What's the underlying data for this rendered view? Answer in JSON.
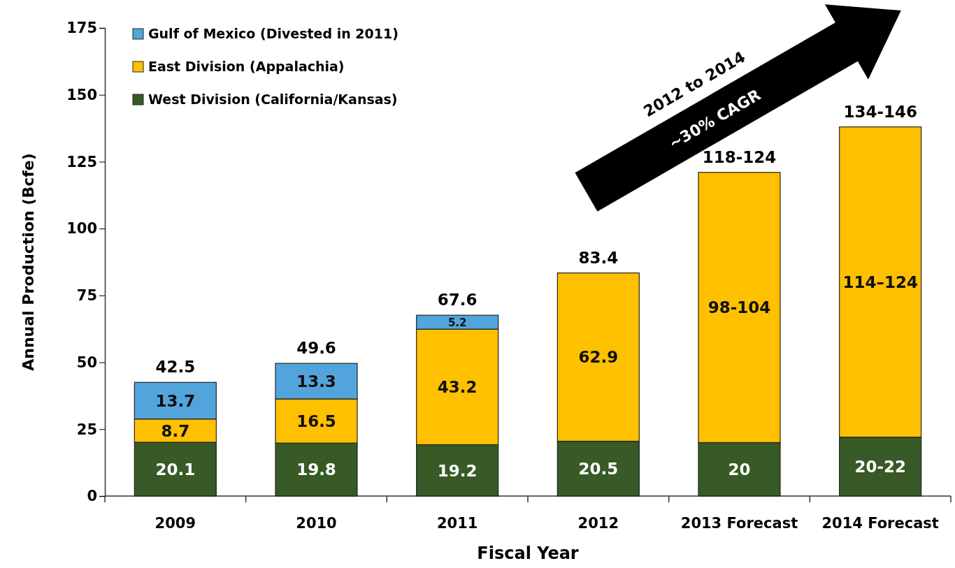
{
  "chart_data": {
    "type": "bar",
    "stacked": true,
    "xlabel": "Fiscal Year",
    "ylabel": "Annual Production (Bcfe)",
    "categories": [
      "2009",
      "2010",
      "2011",
      "2012",
      "2013 Forecast",
      "2014 Forecast"
    ],
    "series": [
      {
        "name": "West Division (California/Kansas)",
        "color": "#375a26",
        "values": [
          20.1,
          19.8,
          19.2,
          20.5,
          20,
          22
        ],
        "value_labels": [
          "20.1",
          "19.8",
          "19.2",
          "20.5",
          "20",
          "20-22"
        ]
      },
      {
        "name": "East Division (Appalachia)",
        "color": "#ffc000",
        "values": [
          8.7,
          16.5,
          43.2,
          62.9,
          101,
          116
        ],
        "value_labels": [
          "8.7",
          "16.5",
          "43.2",
          "62.9",
          "98-104",
          "114–124"
        ]
      },
      {
        "name": "Gulf of Mexico (Divested in 2011)",
        "color": "#52a5dc",
        "values": [
          13.7,
          13.3,
          5.2,
          null,
          null,
          null
        ],
        "value_labels": [
          "13.7",
          "13.3",
          "5.2",
          null,
          null,
          null
        ]
      }
    ],
    "totals": [
      "42.5",
      "49.6",
      "67.6",
      "83.4",
      "118-124",
      "134-146"
    ],
    "ylim": [
      0,
      175
    ],
    "yticks": [
      0,
      25,
      50,
      75,
      100,
      125,
      150,
      175
    ],
    "legend": "top left",
    "grid": false,
    "annotations": [
      "2012 to 2014",
      "~30% CAGR"
    ]
  }
}
